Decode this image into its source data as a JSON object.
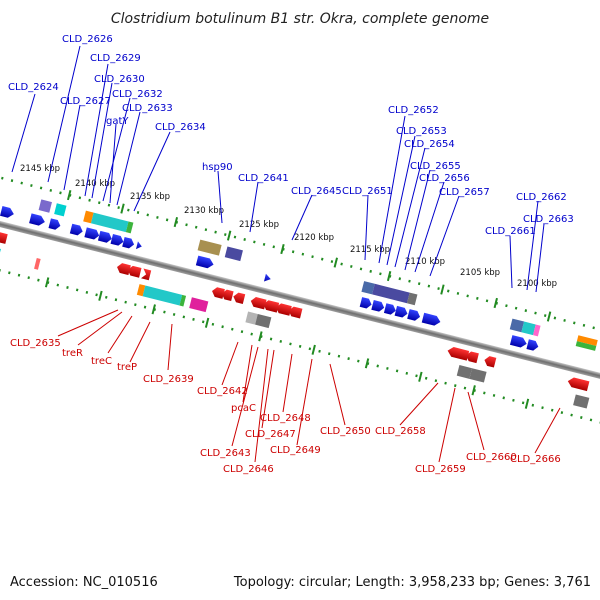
{
  "title": "Clostridium botulinum B1 str. Okra, complete genome",
  "footer": {
    "accession": "Accession: NC_010516",
    "stats": "Topology: circular; Length: 3,958,233 bp; Genes: 3,761"
  },
  "kbp_ticks": [
    {
      "text": "2145 kbp"
    },
    {
      "text": "2140 kbp"
    },
    {
      "text": "2135 kbp"
    },
    {
      "text": "2130 kbp"
    },
    {
      "text": "2125 kbp"
    },
    {
      "text": "2120 kbp"
    },
    {
      "text": "2115 kbp"
    },
    {
      "text": "2110 kbp"
    },
    {
      "text": "2105 kbp"
    },
    {
      "text": "2100 kbp"
    }
  ],
  "forward_genes": [
    {
      "label": "CLD_2624"
    },
    {
      "label": "CLD_2626"
    },
    {
      "label": "CLD_2627"
    },
    {
      "label": "CLD_2629"
    },
    {
      "label": "CLD_2630"
    },
    {
      "label": "CLD_2632"
    },
    {
      "label": "gatY"
    },
    {
      "label": "CLD_2633"
    },
    {
      "label": "CLD_2634"
    },
    {
      "label": "hsp90"
    },
    {
      "label": "CLD_2641"
    },
    {
      "label": "CLD_2645"
    },
    {
      "label": "CLD_2651"
    },
    {
      "label": "CLD_2652"
    },
    {
      "label": "CLD_2653"
    },
    {
      "label": "CLD_2654"
    },
    {
      "label": "CLD_2655"
    },
    {
      "label": "CLD_2656"
    },
    {
      "label": "CLD_2657"
    },
    {
      "label": "CLD_2662"
    },
    {
      "label": "CLD_2663"
    },
    {
      "label": "CLD_2661"
    }
  ],
  "reverse_genes": [
    {
      "label": "CLD_2635"
    },
    {
      "label": "treR"
    },
    {
      "label": "treC"
    },
    {
      "label": "treP"
    },
    {
      "label": "CLD_2639"
    },
    {
      "label": "CLD_2642"
    },
    {
      "label": "pcaC"
    },
    {
      "label": "CLD_2643"
    },
    {
      "label": "CLD_2647"
    },
    {
      "label": "CLD_2646"
    },
    {
      "label": "CLD_2648"
    },
    {
      "label": "CLD_2649"
    },
    {
      "label": "CLD_2650"
    },
    {
      "label": "CLD_2658"
    },
    {
      "label": "CLD_2659"
    },
    {
      "label": "CLD_2660"
    },
    {
      "label": "CLD_2666"
    }
  ],
  "colors": {
    "forward": "#0000cc",
    "reverse": "#cc0000",
    "backbone": "#808080",
    "tick": "#228b22"
  }
}
